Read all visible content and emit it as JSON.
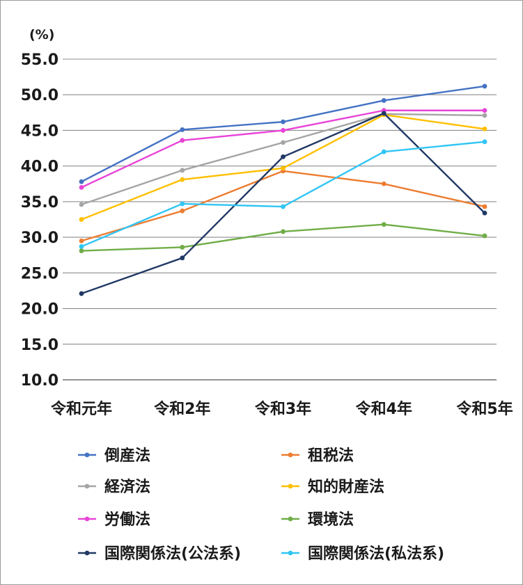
{
  "chart_data": {
    "type": "line",
    "ylabel": "(%)",
    "ylim": [
      10,
      55
    ],
    "yticks": [
      "10.0",
      "15.0",
      "20.0",
      "25.0",
      "30.0",
      "35.0",
      "40.0",
      "45.0",
      "50.0",
      "55.0"
    ],
    "categories": [
      "令和元年",
      "令和2年",
      "令和3年",
      "令和4年",
      "令和5年"
    ],
    "grid": true,
    "legend_position": "bottom",
    "series": [
      {
        "name": "倒産法",
        "color": "#4472c4",
        "values": [
          37.8,
          45.1,
          46.2,
          49.2,
          51.2
        ]
      },
      {
        "name": "租税法",
        "color": "#ed7d31",
        "values": [
          29.5,
          33.7,
          39.3,
          37.5,
          34.3
        ]
      },
      {
        "name": "経済法",
        "color": "#a5a5a5",
        "values": [
          34.6,
          39.4,
          43.3,
          47.3,
          47.1
        ]
      },
      {
        "name": "知的財産法",
        "color": "#ffc000",
        "values": [
          32.5,
          38.1,
          39.7,
          47.2,
          45.2
        ]
      },
      {
        "name": "労働法",
        "color": "#e844d8",
        "values": [
          37.0,
          43.6,
          45.0,
          47.8,
          47.8
        ]
      },
      {
        "name": "環境法",
        "color": "#70ad47",
        "values": [
          28.1,
          28.6,
          30.8,
          31.8,
          30.2
        ]
      },
      {
        "name": "国際関係法(公法系)",
        "color": "#203864",
        "values": [
          22.1,
          27.1,
          41.3,
          47.4,
          33.4
        ]
      },
      {
        "name": "国際関係法(私法系)",
        "color": "#31c5f4",
        "values": [
          28.7,
          34.7,
          34.3,
          42.0,
          43.4
        ]
      }
    ]
  }
}
